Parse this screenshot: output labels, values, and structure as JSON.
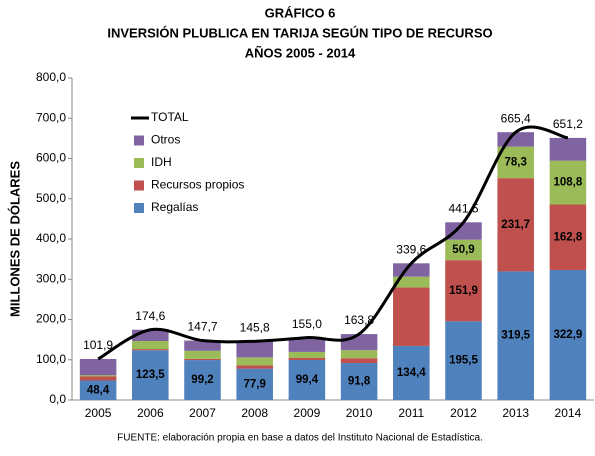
{
  "chart_data": {
    "type": "bar",
    "stacked": true,
    "title": [
      "GRÁFICO 6",
      "INVERSIÓN PLUBLICA EN TARIJA SEGÚN TIPO DE RECURSO",
      "AÑOS 2005 - 2014"
    ],
    "ylabel": "MILLONES DE DÓLARES",
    "note": "FUENTE: elaboración propia en base a datos del Instituto Nacional de Estadística.",
    "categories": [
      "2005",
      "2006",
      "2007",
      "2008",
      "2009",
      "2010",
      "2011",
      "2012",
      "2013",
      "2014"
    ],
    "series": [
      {
        "name": "Regalías",
        "color": "#4f81bd",
        "values": [
          48.4,
          123.5,
          99.2,
          77.9,
          99.4,
          91.8,
          134.4,
          195.5,
          319.5,
          322.9
        ],
        "value_labels": [
          "48,4",
          "123,5",
          "99,2",
          "77,9",
          "99,4",
          "91,8",
          "134,4",
          "195,5",
          "319,5",
          "322,9"
        ]
      },
      {
        "name": "Recursos propios",
        "color": "#c0504d",
        "values": [
          10,
          3,
          3,
          8,
          5,
          12,
          145,
          151.9,
          231.7,
          162.8
        ],
        "value_labels": [
          null,
          null,
          null,
          null,
          null,
          null,
          null,
          "151,9",
          "231,7",
          "162,8"
        ]
      },
      {
        "name": "IDH",
        "color": "#9bbb59",
        "values": [
          3,
          20,
          20,
          20,
          15,
          20,
          27,
          50.9,
          78.3,
          108.8
        ],
        "value_labels": [
          null,
          null,
          null,
          null,
          null,
          null,
          null,
          "50,9",
          "78,3",
          "108,8"
        ]
      },
      {
        "name": "Otros",
        "color": "#8064a2",
        "values": [
          40.5,
          28.1,
          25.5,
          39.9,
          35.6,
          40,
          33.2,
          43.2,
          35.9,
          56.7
        ]
      },
      {
        "name": "TOTAL",
        "type": "line",
        "color": "#000000",
        "values": [
          101.9,
          174.6,
          147.7,
          145.8,
          155.0,
          163.8,
          339.6,
          441.5,
          665.4,
          651.2
        ],
        "value_labels": [
          "101,9",
          "174,6",
          "147,7",
          "145,8",
          "155,0",
          "163,8",
          "339,6",
          "441,5",
          "665,4",
          "651,2"
        ]
      }
    ],
    "ylim": [
      0,
      800
    ],
    "yticks": [
      {
        "value": 0,
        "label": "0,0"
      },
      {
        "value": 100,
        "label": "100,0"
      },
      {
        "value": 200,
        "label": "200,0"
      },
      {
        "value": 300,
        "label": "300,0"
      },
      {
        "value": 400,
        "label": "400,0"
      },
      {
        "value": 500,
        "label": "500,0"
      },
      {
        "value": 600,
        "label": "600,0"
      },
      {
        "value": 700,
        "label": "700,0"
      },
      {
        "value": 800,
        "label": "800,0"
      }
    ],
    "legend": "top-left"
  }
}
